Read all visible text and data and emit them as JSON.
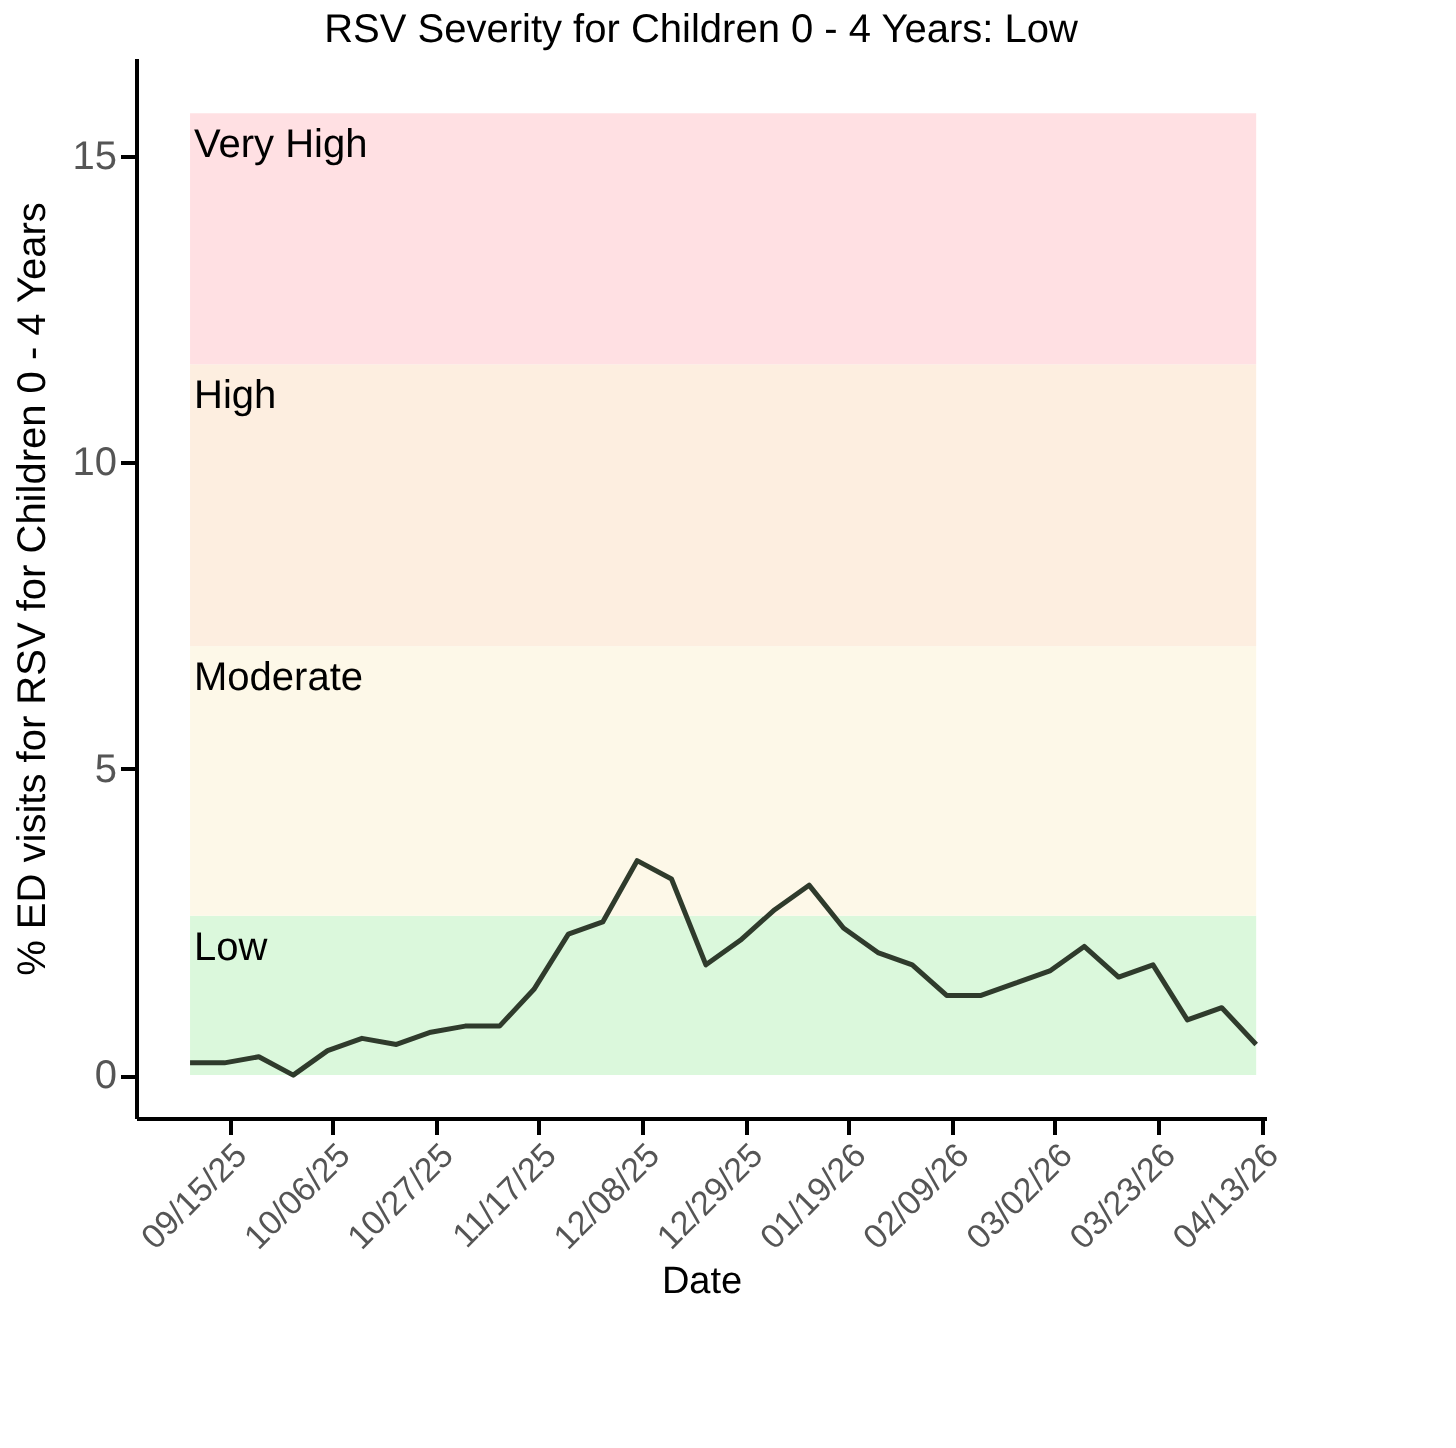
{
  "chart_data": {
    "type": "line",
    "title": "RSV Severity for Children 0 - 4 Years: Low",
    "xlabel": "Date",
    "ylabel": "% ED visits for RSV for Children 0 - 4 Years",
    "x": [
      "2025-09-07",
      "2025-09-14",
      "2025-09-21",
      "2025-09-28",
      "2025-10-05",
      "2025-10-12",
      "2025-10-19",
      "2025-10-26",
      "2025-11-02",
      "2025-11-09",
      "2025-11-16",
      "2025-11-23",
      "2025-11-30",
      "2025-12-07",
      "2025-12-14",
      "2025-12-21",
      "2025-12-28",
      "2026-01-04",
      "2026-01-11",
      "2026-01-18",
      "2026-01-25",
      "2026-02-01",
      "2026-02-08",
      "2026-02-15",
      "2026-02-22",
      "2026-03-01",
      "2026-03-08",
      "2026-03-15",
      "2026-03-22",
      "2026-03-29",
      "2026-04-05",
      "2026-04-12"
    ],
    "series": [
      {
        "color": "#2f3b2c",
        "values": [
          0.2,
          0.2,
          0.3,
          0.0,
          0.4,
          0.6,
          0.5,
          0.7,
          0.8,
          0.8,
          1.4,
          2.3,
          2.5,
          3.5,
          3.2,
          1.8,
          2.2,
          2.7,
          3.1,
          2.4,
          2.0,
          1.8,
          1.3,
          1.3,
          1.5,
          1.7,
          2.1,
          1.6,
          1.8,
          0.9,
          1.1,
          0.5
        ]
      }
    ],
    "xlim": [
      "2025-08-27",
      "2026-04-14"
    ],
    "xticks": [
      {
        "value": "2025-09-15",
        "label": "09/15/25"
      },
      {
        "value": "2025-10-06",
        "label": "10/06/25"
      },
      {
        "value": "2025-10-27",
        "label": "10/27/25"
      },
      {
        "value": "2025-11-17",
        "label": "11/17/25"
      },
      {
        "value": "2025-12-08",
        "label": "12/08/25"
      },
      {
        "value": "2025-12-29",
        "label": "12/29/25"
      },
      {
        "value": "2026-01-19",
        "label": "01/19/26"
      },
      {
        "value": "2026-02-09",
        "label": "02/09/26"
      },
      {
        "value": "2026-03-02",
        "label": "03/02/26"
      },
      {
        "value": "2026-03-23",
        "label": "03/23/26"
      },
      {
        "value": "2026-04-13",
        "label": "04/13/26"
      }
    ],
    "ylim": [
      -0.7,
      16.6
    ],
    "yticks": [
      0,
      5,
      10,
      15
    ],
    "bands": [
      {
        "axis": "y",
        "from": 0,
        "to": 2.6,
        "label": "Low",
        "color": "#dbf8dc"
      },
      {
        "axis": "y",
        "from": 2.6,
        "to": 7.0,
        "label": "Moderate",
        "color": "#fdf8e8"
      },
      {
        "axis": "y",
        "from": 7.0,
        "to": 11.6,
        "label": "High",
        "color": "#fdeee0"
      },
      {
        "axis": "y",
        "from": 11.6,
        "to": 15.7,
        "label": "Very High",
        "color": "#ffe0e3"
      }
    ],
    "grid": false,
    "marker": "none",
    "line_style": "solid"
  }
}
